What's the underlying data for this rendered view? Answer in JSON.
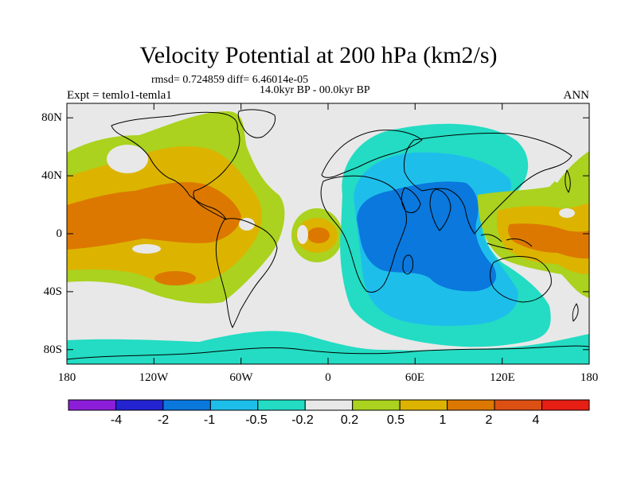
{
  "figure": {
    "title": "Velocity Potential at 200 hPa (km2/s)",
    "stats": "rmsd= 0.724859 diff= 6.46014e-05",
    "period": "14.0kyr BP - 00.0kyr BP",
    "experiment": "Expt = temlo1-temla1",
    "season": "ANN"
  },
  "map": {
    "lat_labels": [
      "80N",
      "40N",
      "0",
      "40S",
      "80S"
    ],
    "lon_labels": [
      "180",
      "120W",
      "60W",
      "0",
      "60E",
      "120E",
      "180"
    ],
    "lon_range": [
      -180,
      180
    ],
    "lat_range": [
      -90,
      90
    ],
    "colors": {
      "ocean_land_bg": "#e8e8e8",
      "coastline": "#000000"
    }
  },
  "colorbar": {
    "labels": [
      "-4",
      "-2",
      "-1",
      "-0.5",
      "-0.2",
      "0.2",
      "0.5",
      "1",
      "2",
      "4"
    ],
    "colors": [
      "#8c1ed9",
      "#2323d2",
      "#0a78dc",
      "#1ebeeb",
      "#23dcc3",
      "#e8e8e8",
      "#aad21e",
      "#dcb400",
      "#dc7800",
      "#dc5014",
      "#e61e14"
    ]
  }
}
